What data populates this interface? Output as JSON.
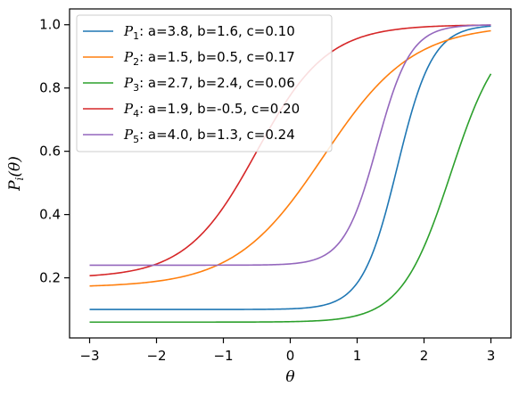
{
  "chart_data": {
    "type": "line",
    "xlabel": "θ",
    "ylabel": "Pi(θ)",
    "xlim": [
      -3.3,
      3.3
    ],
    "ylim": [
      0.01,
      1.05
    ],
    "x_ticks": [
      -3,
      -2,
      -1,
      0,
      1,
      2,
      3
    ],
    "x_tick_labels": [
      "−3",
      "−2",
      "−1",
      "0",
      "1",
      "2",
      "3"
    ],
    "y_ticks": [
      0.2,
      0.4,
      0.6,
      0.8,
      1.0
    ],
    "y_tick_labels": [
      "0.2",
      "0.4",
      "0.6",
      "0.8",
      "1.0"
    ],
    "x_range": [
      -3,
      3
    ],
    "grid": false,
    "legend_position": "upper-left",
    "series": [
      {
        "name": "P1",
        "sub": "1",
        "params_label": ": a=3.8, b=1.6, c=0.10",
        "a": 3.8,
        "b": 1.6,
        "c": 0.1,
        "color": "#1f77b4"
      },
      {
        "name": "P2",
        "sub": "2",
        "params_label": ": a=1.5, b=0.5, c=0.17",
        "a": 1.5,
        "b": 0.5,
        "c": 0.17,
        "color": "#ff7f0e"
      },
      {
        "name": "P3",
        "sub": "3",
        "params_label": ": a=2.7, b=2.4, c=0.06",
        "a": 2.7,
        "b": 2.4,
        "c": 0.06,
        "color": "#2ca02c"
      },
      {
        "name": "P4",
        "sub": "4",
        "params_label": ": a=1.9, b=-0.5, c=0.20",
        "a": 1.9,
        "b": -0.5,
        "c": 0.2,
        "color": "#d62728"
      },
      {
        "name": "P5",
        "sub": "5",
        "params_label": ": a=4.0, b=1.3, c=0.24",
        "a": 4.0,
        "b": 1.3,
        "c": 0.24,
        "color": "#9467bd"
      }
    ]
  }
}
